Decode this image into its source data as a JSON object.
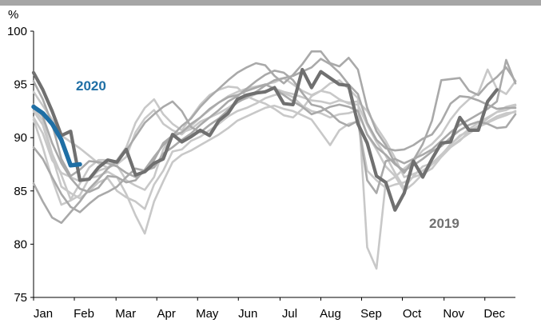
{
  "chart_data": {
    "type": "line",
    "title": "",
    "xlabel": "",
    "ylabel": "%",
    "ylim": [
      75,
      100
    ],
    "yticks": [
      75,
      80,
      85,
      90,
      95,
      100
    ],
    "xlim": [
      0,
      52
    ],
    "x_tick_labels": [
      "Jan",
      "Feb",
      "Mar",
      "Apr",
      "May",
      "Jun",
      "Jul",
      "Aug",
      "Sep",
      "Oct",
      "Nov",
      "Dec"
    ],
    "x_tick_weeks": [
      0,
      4.4,
      8.9,
      13.3,
      17.7,
      22.1,
      26.6,
      31,
      35.4,
      39.8,
      44.3,
      48.7
    ],
    "grid": false,
    "legend": "inline labels",
    "colors": {
      "highlight_2019": "#707070",
      "highlight_2020": "#1f6fa5",
      "history_light": "#c8c8c8",
      "history_mid": "#a9a9a9",
      "top_bar": "#a6a6a6"
    },
    "labels": {
      "label_2020": "2020",
      "label_2019": "2019"
    },
    "series": [
      {
        "name": "",
        "shade": "light",
        "values": [
          92.8,
          91.6,
          88.5,
          86.5,
          84.2,
          85.7,
          87.2,
          87.9,
          87.9,
          87.4,
          86.0,
          85.5,
          85.1,
          86.3,
          88.9,
          90.3,
          90.5,
          90.8,
          91.5,
          91.9,
          92.3,
          92.8,
          93.4,
          93.7,
          94.1,
          94.4,
          94.6,
          94.3,
          94.1,
          93.8,
          93.5,
          93.4,
          93.2,
          93.5,
          93.3,
          93.4,
          92.5,
          91.0,
          89.7,
          88.1,
          86.3,
          86.6,
          86.9,
          87.5,
          88.3,
          89.4,
          90.1,
          90.8,
          91.4,
          91.9,
          92.4,
          92.9,
          93.1
        ]
      },
      {
        "name": "",
        "shade": "light",
        "values": [
          92.5,
          91.2,
          88.3,
          85.4,
          84.8,
          84.3,
          85.0,
          85.8,
          86.2,
          85.0,
          84.4,
          84.0,
          83.3,
          85.6,
          86.9,
          88.7,
          88.9,
          89.7,
          90.1,
          90.7,
          91.3,
          92.0,
          92.5,
          92.8,
          93.2,
          93.7,
          94.0,
          94.2,
          93.8,
          93.0,
          92.5,
          92.3,
          91.9,
          92.2,
          92.3,
          92.6,
          90.3,
          88.9,
          87.3,
          86.4,
          85.0,
          85.7,
          86.6,
          87.1,
          88.2,
          89.1,
          89.7,
          90.6,
          91.1,
          91.8,
          92.4,
          92.6,
          93.0
        ]
      },
      {
        "name": "",
        "shade": "light",
        "values": [
          91.7,
          89.1,
          86.1,
          83.7,
          84.1,
          84.6,
          86.2,
          86.4,
          86.8,
          86.3,
          84.7,
          82.7,
          81.0,
          84.0,
          85.9,
          87.7,
          88.4,
          88.8,
          89.3,
          89.8,
          90.3,
          90.9,
          91.6,
          92.0,
          92.4,
          92.8,
          93.0,
          92.7,
          92.5,
          92.1,
          91.7,
          90.5,
          89.3,
          90.7,
          91.3,
          91.5,
          86.9,
          86.0,
          85.3,
          85.6,
          85.8,
          86.3,
          86.6,
          87.5,
          88.2,
          89.1,
          89.8,
          90.4,
          91.0,
          91.4,
          91.8,
          92.1,
          92.5
        ]
      },
      {
        "name": "",
        "shade": "light",
        "values": [
          94.3,
          93.0,
          91.7,
          90.2,
          89.6,
          89.0,
          88.3,
          87.6,
          87.2,
          87.5,
          88.2,
          90.5,
          91.8,
          92.6,
          91.3,
          90.7,
          90.3,
          91.1,
          91.9,
          92.6,
          93.3,
          93.9,
          94.3,
          94.6,
          94.8,
          95.0,
          95.2,
          95.6,
          95.0,
          94.4,
          94.0,
          94.4,
          95.1,
          95.4,
          94.6,
          93.7,
          79.7,
          77.7,
          85.8,
          86.3,
          87.1,
          87.8,
          88.8,
          89.4,
          90.3,
          91.7,
          92.8,
          93.6,
          94.2,
          96.4,
          94.6,
          94.1,
          95.3
        ]
      },
      {
        "name": "",
        "shade": "light",
        "values": [
          91.9,
          90.4,
          87.9,
          86.7,
          86.3,
          85.9,
          86.1,
          86.9,
          87.2,
          87.9,
          89.1,
          91.4,
          92.8,
          93.6,
          92.2,
          91.3,
          90.7,
          91.9,
          93.1,
          94.0,
          94.5,
          94.8,
          94.7,
          93.9,
          93.5,
          93.2,
          92.7,
          92.1,
          91.9,
          92.7,
          93.9,
          94.4,
          94.2,
          93.6,
          93.2,
          93.1,
          91.2,
          89.6,
          88.3,
          86.7,
          85.3,
          86.4,
          87.3,
          87.6,
          88.4,
          89.3,
          90.2,
          90.6,
          91.0,
          91.5,
          92.0,
          92.3,
          92.4
        ]
      },
      {
        "name": "",
        "shade": "mid",
        "values": [
          85.7,
          84.0,
          82.5,
          82.0,
          83.0,
          84.0,
          85.2,
          86.1,
          87.1,
          87.8,
          88.8,
          90.1,
          91.4,
          92.2,
          92.9,
          93.4,
          92.5,
          91.0,
          90.5,
          91.2,
          91.8,
          92.6,
          93.3,
          93.8,
          94.3,
          94.9,
          95.4,
          95.6,
          95.8,
          96.2,
          96.6,
          97.4,
          96.9,
          96.1,
          95.0,
          94.1,
          91.4,
          89.8,
          89.0,
          88.8,
          88.9,
          89.3,
          89.9,
          90.3,
          91.5,
          93.2,
          93.9,
          93.8,
          93.5,
          93.1,
          92.7,
          92.8,
          92.8
        ]
      },
      {
        "name": "",
        "shade": "mid",
        "values": [
          95.3,
          93.6,
          91.3,
          88.0,
          86.4,
          87.0,
          87.8,
          87.7,
          87.6,
          87.3,
          86.7,
          86.3,
          86.8,
          87.9,
          89.5,
          90.2,
          91.1,
          91.8,
          92.9,
          93.8,
          94.6,
          95.4,
          96.1,
          96.6,
          97.0,
          96.8,
          95.8,
          95.1,
          95.9,
          96.9,
          98.1,
          98.1,
          97.0,
          96.7,
          97.5,
          96.4,
          92.8,
          90.6,
          89.3,
          87.6,
          86.7,
          87.9,
          89.4,
          91.6,
          95.4,
          95.5,
          95.6,
          94.4,
          94.0,
          95.0,
          95.7,
          96.6,
          95.3
        ]
      },
      {
        "name": "",
        "shade": "mid",
        "values": [
          89.1,
          88.0,
          86.3,
          84.7,
          83.5,
          83.0,
          83.8,
          84.5,
          84.9,
          85.4,
          86.3,
          87.1,
          86.9,
          87.2,
          88.5,
          89.1,
          89.8,
          90.4,
          91.2,
          91.9,
          92.6,
          93.4,
          93.9,
          94.6,
          95.3,
          95.9,
          96.3,
          96.1,
          95.4,
          94.2,
          93.1,
          92.9,
          92.3,
          91.5,
          91.1,
          91.6,
          86.0,
          84.8,
          87.8,
          88.0,
          87.6,
          88.0,
          88.4,
          88.9,
          89.7,
          90.5,
          91.2,
          91.7,
          92.2,
          92.7,
          93.4,
          97.3,
          95.1
        ]
      },
      {
        "name": "",
        "shade": "mid",
        "values": [
          93.1,
          92.0,
          89.5,
          87.6,
          86.2,
          85.2,
          84.9,
          85.3,
          86.4,
          86.3,
          85.8,
          86.0,
          87.0,
          88.2,
          89.3,
          90.1,
          90.5,
          91.3,
          91.9,
          92.7,
          93.3,
          93.8,
          94.0,
          94.4,
          94.7,
          95.0,
          94.6,
          94.0,
          93.4,
          92.9,
          92.2,
          92.5,
          92.9,
          93.1,
          92.9,
          92.5,
          90.3,
          89.1,
          88.4,
          87.5,
          86.9,
          87.4,
          88.0,
          88.7,
          89.2,
          90.0,
          90.7,
          91.2,
          91.5,
          91.3,
          90.9,
          91.0,
          92.2
        ]
      },
      {
        "name": "2019",
        "shade": "highlight",
        "values": [
          96.1,
          94.5,
          92.5,
          90.2,
          90.6,
          86.0,
          86.1,
          87.2,
          87.9,
          87.7,
          88.9,
          86.5,
          86.8,
          87.6,
          88.0,
          90.3,
          89.6,
          90.1,
          90.7,
          90.2,
          91.6,
          92.3,
          93.6,
          94.0,
          94.2,
          94.3,
          94.7,
          93.2,
          93.1,
          96.4,
          94.7,
          96.2,
          95.6,
          95.0,
          94.9,
          91.3,
          89.5,
          86.4,
          85.8,
          83.2,
          84.8,
          87.8,
          86.3,
          88.0,
          89.5,
          89.6,
          91.9,
          90.7,
          90.7,
          93.4,
          94.5
        ]
      },
      {
        "name": "2020",
        "shade": "2020",
        "values": [
          92.9,
          92.3,
          91.3,
          89.8,
          87.4,
          87.5
        ]
      }
    ]
  }
}
